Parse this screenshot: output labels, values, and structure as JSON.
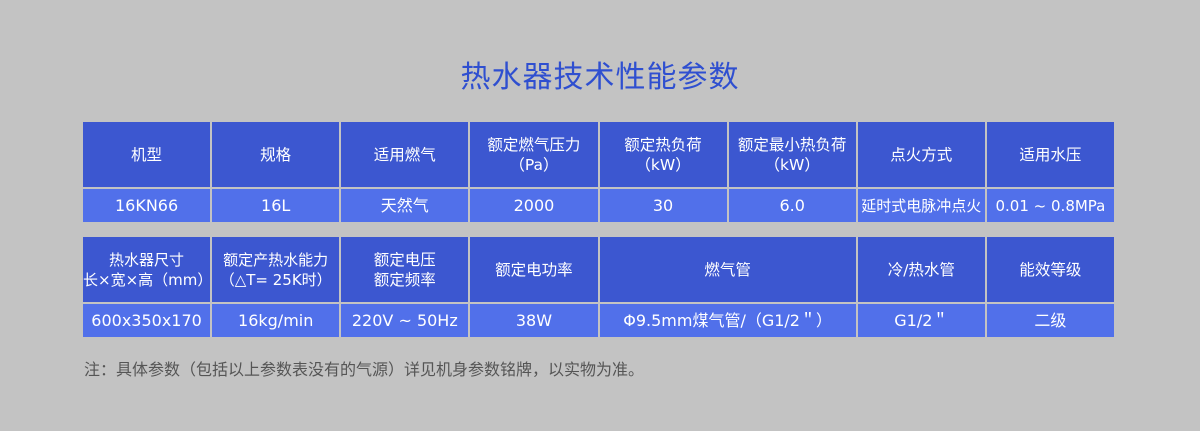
{
  "title": "热水器技术性能参数",
  "table1": {
    "headers": [
      "机型",
      "规格",
      "适用燃气",
      "额定燃气压力\n（Pa）",
      "额定热负荷\n（kW）",
      "额定最小热负荷\n（kW）",
      "点火方式",
      "适用水压"
    ],
    "values": [
      "16KN66",
      "16L",
      "天然气",
      "2000",
      "30",
      "6.0",
      "延时式电脉冲点火",
      "0.01 ~ 0.8MPa"
    ]
  },
  "table2": {
    "headers": [
      "热水器尺寸\n长×宽×高（mm）",
      "额定产热水能力\n（△T= 25K时）",
      "额定电压\n额定频率",
      "额定电功率",
      "燃气管",
      "冷/热水管",
      "能效等级"
    ],
    "values": [
      "600x350x170",
      "16kg/min",
      "220V ~ 50Hz",
      "38W",
      "Φ9.5mm煤气管/（G1/2＂）",
      "G1/2＂",
      "二级"
    ]
  },
  "note": "注：具体参数（包括以上参数表没有的气源）详见机身参数铭牌，以实物为准。",
  "colors": {
    "background": "#c3c3c3",
    "title": "#2f4fd0",
    "header_cell": "#3c57d0",
    "data_cell": "#5170ea"
  }
}
